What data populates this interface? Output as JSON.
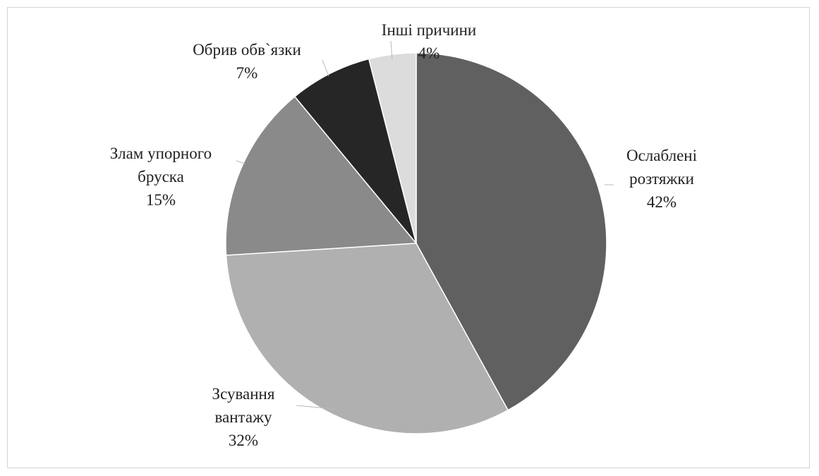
{
  "chart_data": {
    "type": "pie",
    "title": "",
    "slices": [
      {
        "label": [
          "Ослаблені",
          "розтяжки"
        ],
        "value": 42,
        "value_label": "42%",
        "color": "#606060"
      },
      {
        "label": [
          "Зсування",
          "вантажу"
        ],
        "value": 32,
        "value_label": "32%",
        "color": "#b0b0b0"
      },
      {
        "label": [
          "Злам упорного",
          "бруска"
        ],
        "value": 15,
        "value_label": "15%",
        "color": "#8a8a8a"
      },
      {
        "label": [
          "Обрив обв`язки"
        ],
        "value": 7,
        "value_label": "7%",
        "color": "#262626"
      },
      {
        "label": [
          "Інші причини"
        ],
        "value": 4,
        "value_label": "4%",
        "color": "#dcdcdc"
      }
    ],
    "start": "top",
    "direction": "clockwise",
    "legend": "none"
  }
}
